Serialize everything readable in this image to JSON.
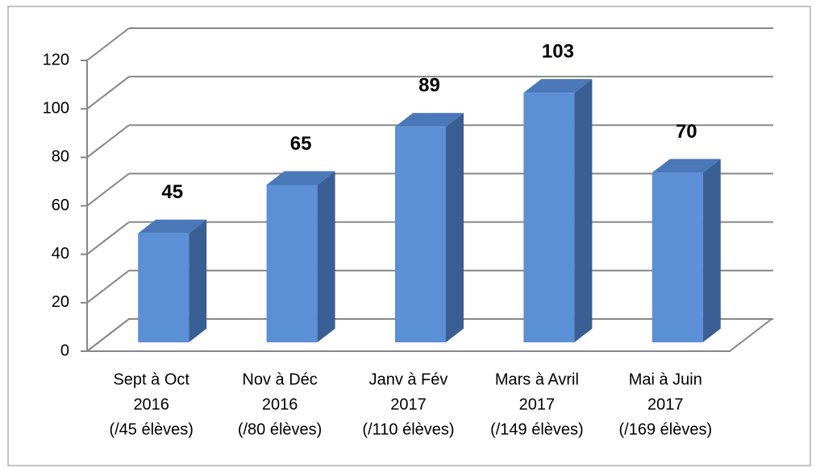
{
  "chart_data": {
    "type": "bar3d",
    "categories": [
      [
        "Sept à Oct",
        "2016",
        "(/45 élèves)"
      ],
      [
        "Nov à Déc",
        "2016",
        "(/80 élèves)"
      ],
      [
        "Janv à Fév",
        "2017",
        "(/110 élèves)"
      ],
      [
        "Mars à Avril",
        "2017",
        "(/149 élèves)"
      ],
      [
        "Mai à Juin",
        "2017",
        "(/169 élèves)"
      ]
    ],
    "values": [
      45,
      65,
      89,
      103,
      70
    ],
    "color": "#5b8fd6",
    "ylim": [
      0,
      120
    ],
    "yticks": [
      0,
      20,
      40,
      60,
      80,
      100,
      120
    ],
    "grid": true
  }
}
